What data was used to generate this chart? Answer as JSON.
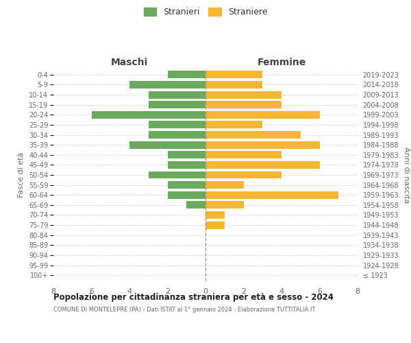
{
  "age_groups": [
    "100+",
    "95-99",
    "90-94",
    "85-89",
    "80-84",
    "75-79",
    "70-74",
    "65-69",
    "60-64",
    "55-59",
    "50-54",
    "45-49",
    "40-44",
    "35-39",
    "30-34",
    "25-29",
    "20-24",
    "15-19",
    "10-14",
    "5-9",
    "0-4"
  ],
  "birth_years": [
    "≤ 1923",
    "1924-1928",
    "1929-1933",
    "1934-1938",
    "1939-1943",
    "1944-1948",
    "1949-1953",
    "1954-1958",
    "1959-1963",
    "1964-1968",
    "1969-1973",
    "1974-1978",
    "1979-1983",
    "1984-1988",
    "1989-1993",
    "1994-1998",
    "1999-2003",
    "2004-2008",
    "2009-2013",
    "2014-2018",
    "2019-2023"
  ],
  "maschi": [
    0,
    0,
    0,
    0,
    0,
    0,
    0,
    1,
    2,
    2,
    3,
    2,
    2,
    4,
    3,
    3,
    6,
    3,
    3,
    4,
    2
  ],
  "femmine": [
    0,
    0,
    0,
    0,
    0,
    1,
    1,
    2,
    7,
    2,
    4,
    6,
    4,
    6,
    5,
    3,
    6,
    4,
    4,
    3,
    3
  ],
  "color_maschi": "#6aaa5e",
  "color_femmine": "#f5b731",
  "title": "Popolazione per cittadinanza straniera per età e sesso - 2024",
  "subtitle": "COMUNE DI MONTELEPRE (PA) - Dati ISTAT al 1° gennaio 2024 - Elaborazione TUTTITALIA.IT",
  "legend_maschi": "Stranieri",
  "legend_femmine": "Straniere",
  "xlabel_left": "Maschi",
  "xlabel_right": "Femmine",
  "ylabel_left": "Fasce di età",
  "ylabel_right": "Anni di nascita",
  "xlim": 8,
  "background_color": "#ffffff",
  "grid_color": "#cccccc"
}
